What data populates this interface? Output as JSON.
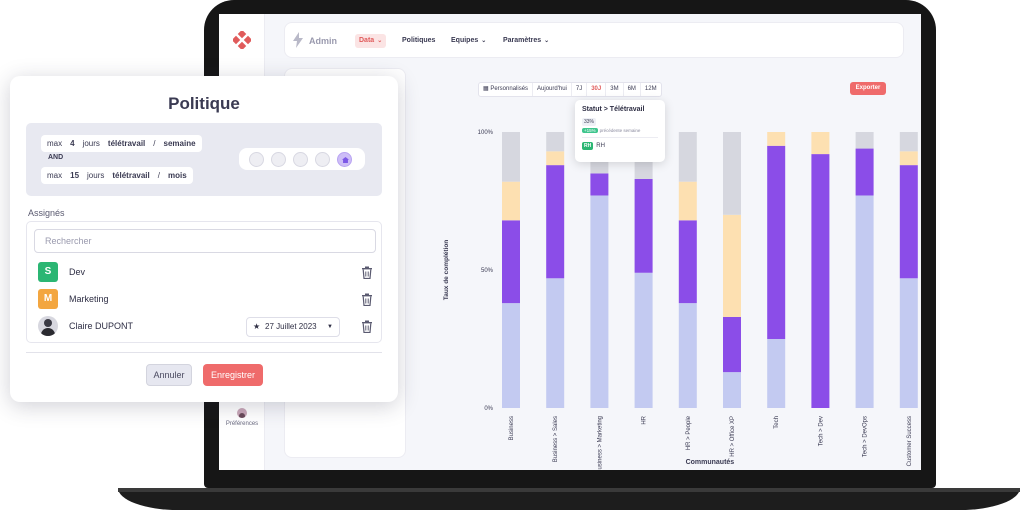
{
  "app": {
    "title": "Admin",
    "preferences_label": "Préférences"
  },
  "nav": {
    "items": [
      {
        "label": "Data",
        "active": true,
        "has_menu": true
      },
      {
        "label": "Politiques",
        "active": false,
        "has_menu": false
      },
      {
        "label": "Equipes",
        "active": false,
        "has_menu": true
      },
      {
        "label": "Paramètres",
        "active": false,
        "has_menu": true
      }
    ]
  },
  "filters": [
    "Personnalisés",
    "Aujourd'hui",
    "7J",
    "30J",
    "3M",
    "6M",
    "12M"
  ],
  "active_filter": "30J",
  "export_label": "Exporter",
  "tooltip": {
    "title": "Statut > Télétravail",
    "value": "33%",
    "delta": "+15%",
    "delta_text": "précédente semaine",
    "tag": "RH",
    "tag_label": "RH"
  },
  "colors": {
    "accent": "#ef6b6b",
    "gray": "#d6d7df",
    "peach": "#fde0b1",
    "purple": "#8b4de8",
    "blue": "#c3caf1"
  },
  "chart_data": {
    "type": "bar",
    "stacked": true,
    "ylabel": "Taux de complétion",
    "xlabel": "Communautés",
    "y_ticks": [
      "100%",
      "50%",
      "0%"
    ],
    "categories": [
      "Business",
      "Business > Sales",
      "Business > Marketing",
      "HR",
      "HR > People",
      "HR > Office XP",
      "Tech",
      "Tech > Dev",
      "Tech > DevOps",
      "Customer Success"
    ],
    "series": [
      {
        "color": "#c3caf1",
        "values": [
          38,
          47,
          77,
          49,
          38,
          13,
          25,
          0,
          77,
          47
        ]
      },
      {
        "color": "#8b4de8",
        "values": [
          30,
          41,
          8,
          34,
          30,
          20,
          70,
          92,
          17,
          41
        ]
      },
      {
        "color": "#fde0b1",
        "values": [
          14,
          5,
          0,
          0,
          14,
          37,
          5,
          8,
          0,
          5
        ]
      },
      {
        "color": "#d6d7df",
        "values": [
          18,
          7,
          15,
          17,
          18,
          30,
          0,
          0,
          6,
          7
        ]
      }
    ]
  },
  "dialog": {
    "title": "Politique",
    "rule1": {
      "max": "max",
      "count": "4",
      "unit": "jours",
      "type": "télétravail",
      "sep": "/",
      "period": "semaine"
    },
    "and": "AND",
    "rule2": {
      "max": "max",
      "count": "15",
      "unit": "jours",
      "type": "télétravail",
      "sep": "/",
      "period": "mois"
    },
    "days": [
      false,
      false,
      false,
      false,
      true
    ],
    "assigned_label": "Assignés",
    "search_placeholder": "Rechercher",
    "assignees": [
      {
        "initial": "S",
        "name": "Dev",
        "color": "#2bb673"
      },
      {
        "initial": "M",
        "name": "Marketing",
        "color": "#f3a640"
      },
      {
        "initial": "",
        "name": "Claire DUPONT",
        "color": "",
        "date": "27 Juillet 2023"
      }
    ],
    "cancel_label": "Annuler",
    "save_label": "Enregistrer"
  }
}
